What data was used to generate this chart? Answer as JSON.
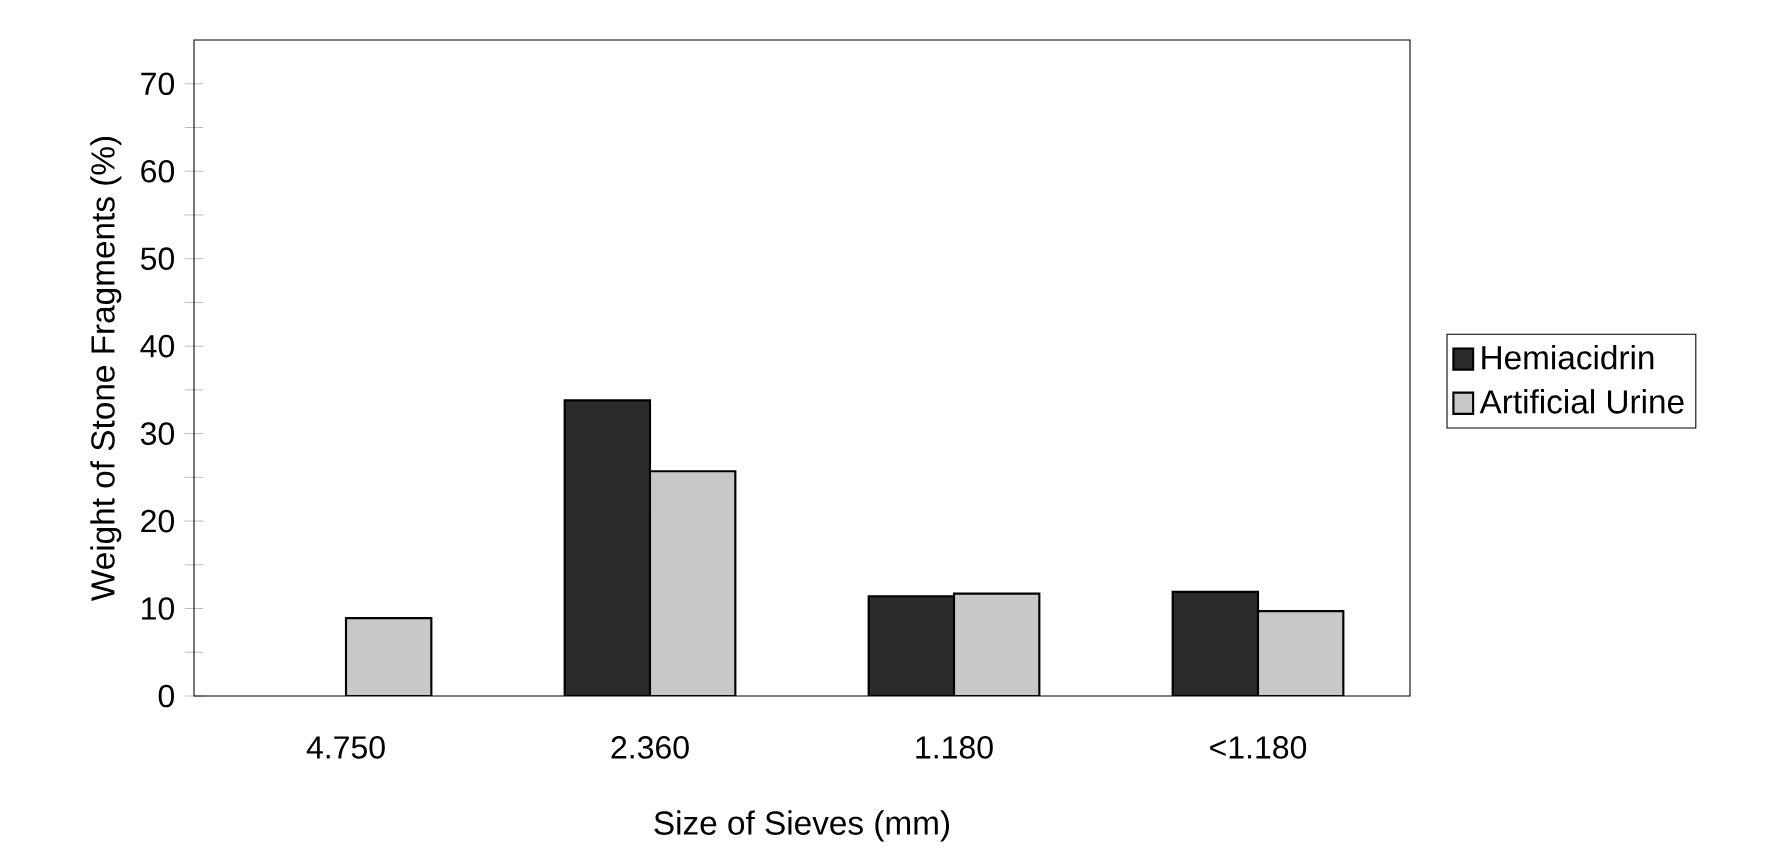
{
  "chart_data": {
    "type": "bar",
    "xlabel": "Size of Sieves (mm)",
    "ylabel": "Weight of Stone Fragments (%)",
    "categories": [
      "4.750",
      "2.360",
      "1.180",
      "<1.180"
    ],
    "series": [
      {
        "name": "Hemiacidrin",
        "color": "#2b2b2b",
        "values": [
          null,
          33.8,
          11.4,
          11.9
        ]
      },
      {
        "name": "Artificial Urine",
        "color": "#c8c8c8",
        "values": [
          8.9,
          25.7,
          11.7,
          9.7
        ]
      }
    ],
    "ylim": [
      0,
      75
    ],
    "yticks": [
      0,
      {
        "value": 5,
        "label": null
      },
      10,
      {
        "value": 15,
        "label": null
      },
      20,
      {
        "value": 25,
        "label": null
      },
      30,
      {
        "value": 35,
        "label": null
      },
      40,
      {
        "value": 45,
        "label": null
      },
      50,
      {
        "value": 55,
        "label": null
      },
      60,
      {
        "value": 65,
        "label": null
      },
      70
    ],
    "grid": false,
    "legend": "right"
  }
}
